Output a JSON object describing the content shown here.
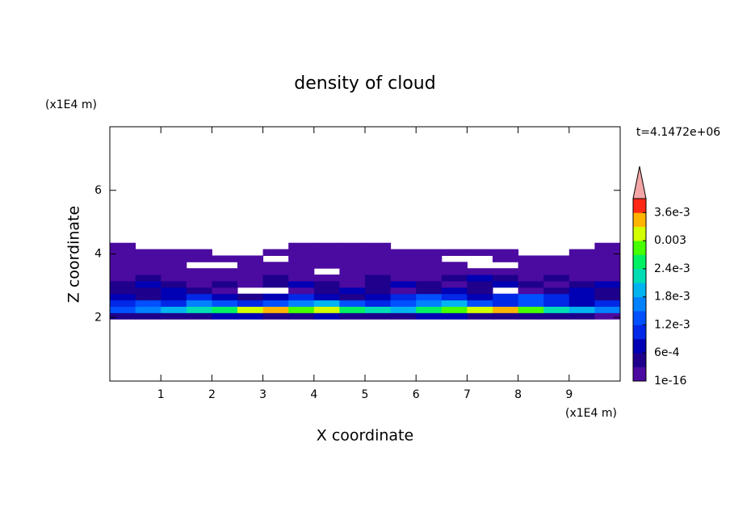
{
  "chart_data": {
    "type": "contour",
    "title": "density of cloud",
    "x_label": "X coordinate",
    "y_label": "Z coordinate",
    "x_unit": "(x1E4 m)",
    "y_unit": "(x1E4 m)",
    "annotation": "t=4.1472e+06",
    "xlim": [
      0,
      10
    ],
    "ylim": [
      0,
      8
    ],
    "xticks": [
      1,
      2,
      3,
      4,
      5,
      6,
      7,
      8,
      9
    ],
    "yticks": [
      2,
      4,
      6
    ],
    "x": [
      0.25,
      0.75,
      1.25,
      1.75,
      2.25,
      2.75,
      3.25,
      3.75,
      4.25,
      4.75,
      5.25,
      5.75,
      6.25,
      6.75,
      7.25,
      7.75,
      8.25,
      8.75,
      9.25,
      9.75
    ],
    "y": [
      2.05,
      2.25,
      2.45,
      2.65,
      2.85,
      3.05,
      3.25,
      3.45,
      3.65,
      3.85,
      4.05,
      4.25
    ],
    "z": [
      [
        0.0004,
        0.0005,
        0.0006,
        0.0005,
        0.0007,
        0.0008,
        0.0006,
        0.0005,
        0.0007,
        0.0006,
        0.0005,
        0.0006,
        0.0008,
        0.0007,
        0.0006,
        0.0005,
        0.0006,
        0.0005,
        0.0004,
        0.0003
      ],
      [
        0.0015,
        0.0018,
        0.0021,
        0.0024,
        0.0027,
        0.0033,
        0.0036,
        0.003,
        0.0033,
        0.0027,
        0.0024,
        0.0021,
        0.0027,
        0.003,
        0.0033,
        0.0036,
        0.003,
        0.0024,
        0.0021,
        0.0018
      ],
      [
        0.0012,
        0.0015,
        0.0012,
        0.0018,
        0.0015,
        0.0012,
        0.0015,
        0.0018,
        0.0021,
        0.0015,
        0.0012,
        0.0015,
        0.0018,
        0.0021,
        0.0015,
        0.0012,
        0.0015,
        0.0012,
        0.0009,
        0.0012
      ],
      [
        0.0009,
        0.0006,
        0.0009,
        0.0012,
        0.0009,
        0.0006,
        0.0009,
        0.0012,
        0.0009,
        0.0006,
        0.0009,
        0.0012,
        0.0015,
        0.0012,
        0.0009,
        0.0012,
        0.0015,
        0.0012,
        0.0009,
        0.0006
      ],
      [
        0.0006,
        0.0006,
        0.0009,
        0.0006,
        0.0003,
        null,
        null,
        0.0003,
        0.0006,
        0.0009,
        0.0006,
        0.0003,
        0.0006,
        0.0009,
        0.0006,
        null,
        0.0003,
        0.0006,
        0.0009,
        0.0006
      ],
      [
        0.0006,
        0.0009,
        0.0006,
        0.0003,
        0.0006,
        0.0003,
        0.0006,
        0.0009,
        0.0006,
        0.0003,
        0.0006,
        0.0009,
        0.0006,
        0.0003,
        0.0006,
        0.0009,
        0.0006,
        0.0003,
        0.0006,
        0.0009
      ],
      [
        0.0003,
        0.0006,
        0.0003,
        0.0003,
        0.0001,
        0.0003,
        0.0006,
        0.0003,
        0.0001,
        0.0003,
        0.0006,
        0.0003,
        0.0003,
        0.0006,
        0.0009,
        0.0006,
        0.0003,
        0.0006,
        0.0003,
        0.0003
      ],
      [
        0.0003,
        0.0003,
        0.0001,
        0.0003,
        0.0003,
        0.0001,
        0.0003,
        0.0001,
        null,
        0.0001,
        0.0003,
        0.0001,
        0.0003,
        0.0003,
        0.0001,
        0.0003,
        0.0003,
        0.0001,
        0.0003,
        0.0003
      ],
      [
        0.0001,
        0.0001,
        0.0001,
        null,
        null,
        0.0001,
        0.0001,
        0.0003,
        0.0001,
        0.0001,
        0.0001,
        0.0003,
        0.0001,
        0.0001,
        null,
        null,
        0.0001,
        0.0001,
        0.0001,
        0.0001
      ],
      [
        0.0001,
        0.0001,
        0.0001,
        0.0001,
        0.0001,
        0.0001,
        null,
        0.0001,
        0.0001,
        0.0001,
        0.0001,
        0.0001,
        0.0001,
        null,
        null,
        0.0001,
        0.0001,
        0.0001,
        0.0001,
        0.0001
      ],
      [
        0.0001,
        0.0001,
        0.0001,
        0.0001,
        null,
        null,
        0.0001,
        0.0001,
        0.0001,
        0.0001,
        0.0001,
        0.0001,
        0.0001,
        0.0001,
        0.0001,
        0.0001,
        null,
        null,
        0.0001,
        0.0001
      ],
      [
        0.0001,
        null,
        null,
        null,
        null,
        null,
        null,
        0.0001,
        0.0001,
        0.0001,
        0.0001,
        null,
        null,
        null,
        null,
        null,
        null,
        null,
        null,
        0.0001
      ]
    ],
    "colorbar": {
      "clim": [
        1e-16,
        0.0039
      ],
      "colors": [
        "#4b0aa0",
        "#1e008c",
        "#0000b4",
        "#0028e6",
        "#0050ff",
        "#0082ff",
        "#00b4f0",
        "#00dcb4",
        "#00f064",
        "#46ff00",
        "#d2ff00",
        "#ffb400",
        "#ff2814"
      ],
      "extend_color": "#f4a6a6",
      "ticks": [
        1e-16,
        {
          "value": 0.0006,
          "label": "6e-4"
        },
        {
          "value": 0.0012,
          "label": "1.2e-3"
        },
        {
          "value": 0.0018,
          "label": "1.8e-3"
        },
        {
          "value": 0.0024,
          "label": "2.4e-3"
        },
        0.003,
        {
          "value": 0.0036,
          "label": "3.6e-3"
        }
      ]
    }
  }
}
